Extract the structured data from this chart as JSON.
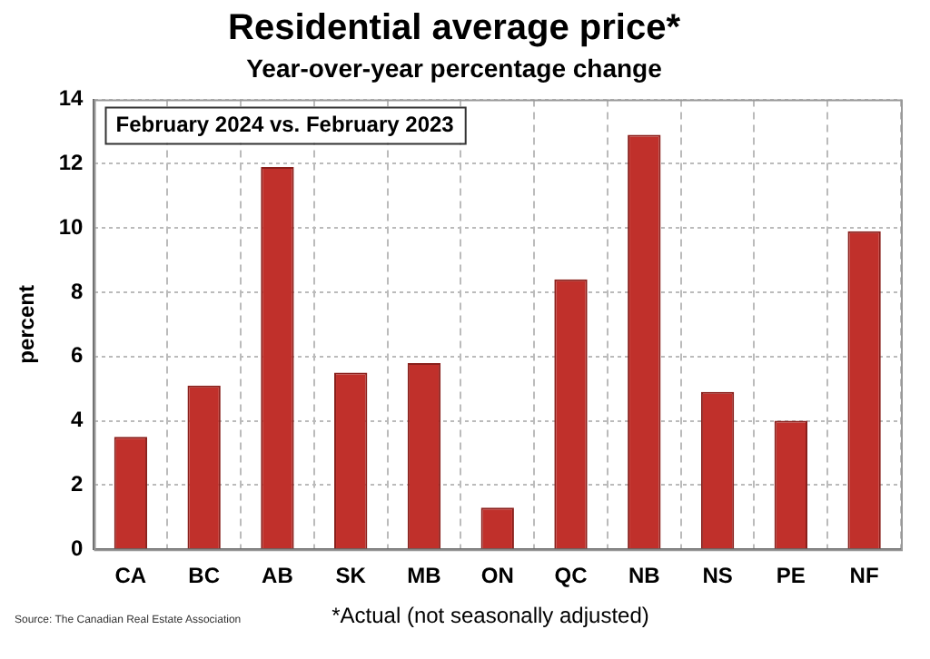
{
  "chart_data": {
    "type": "bar",
    "title": "Residential average price*",
    "subtitle": "Year-over-year percentage change",
    "ylabel": "percent",
    "categories": [
      "CA",
      "BC",
      "AB",
      "SK",
      "MB",
      "ON",
      "QC",
      "NB",
      "NS",
      "PE",
      "NF"
    ],
    "values": [
      3.5,
      5.1,
      11.9,
      5.5,
      5.8,
      1.3,
      8.4,
      12.9,
      4.9,
      4.0,
      9.9
    ],
    "color": "#c0302b",
    "ylim": [
      0,
      14
    ],
    "yticks": [
      0,
      2,
      4,
      6,
      8,
      10,
      12,
      14
    ],
    "grid": true,
    "annotations": [
      "February 2024 vs. February 2023",
      "Source: The Canadian Real Estate Association",
      "*Actual (not seasonally adjusted)"
    ]
  }
}
